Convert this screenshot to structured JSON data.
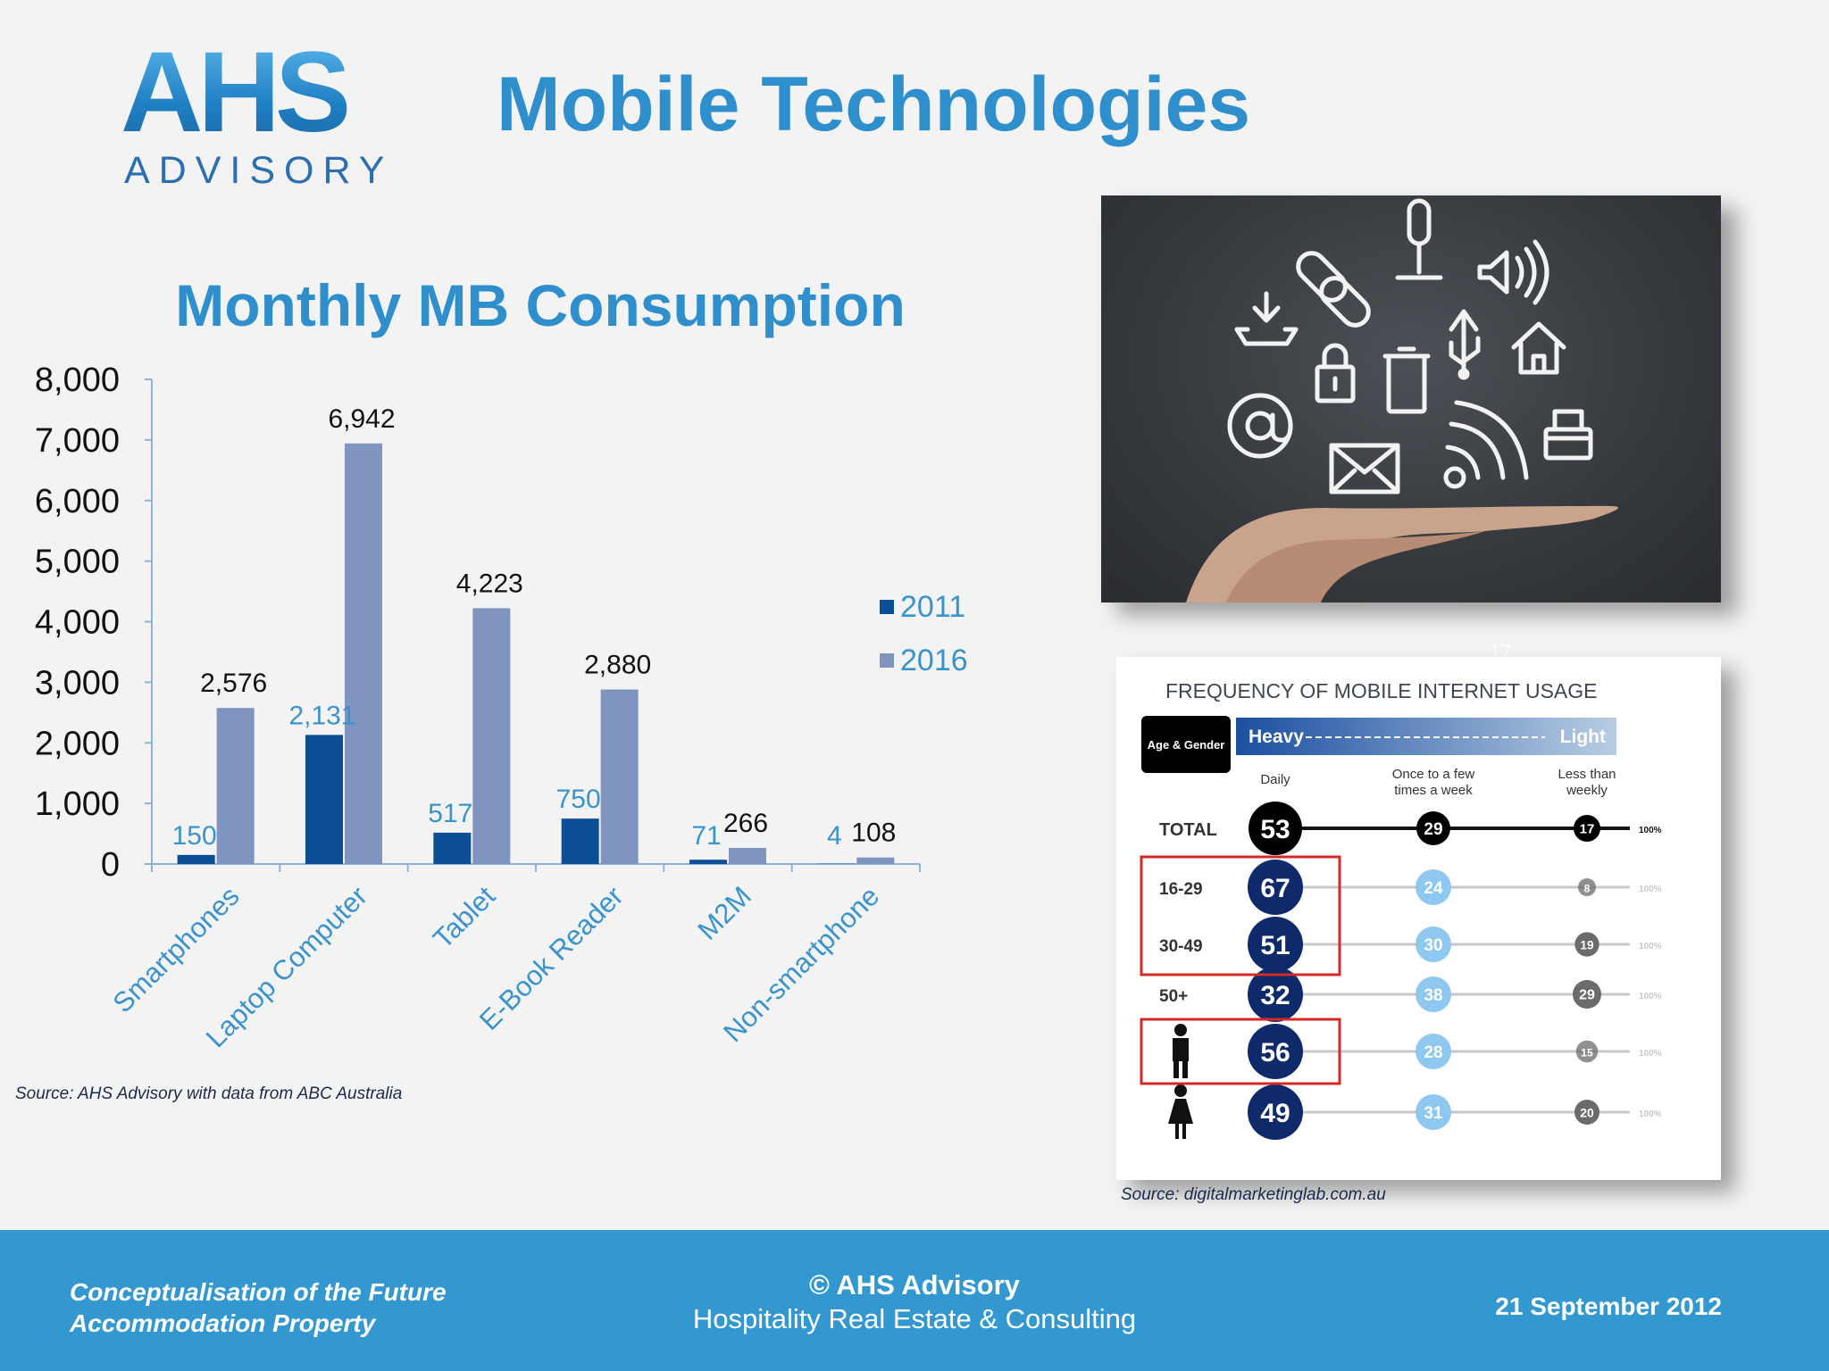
{
  "logo": {
    "main": "AHS",
    "sub": "ADVISORY"
  },
  "title": "Mobile Technologies",
  "chart_data": {
    "type": "bar",
    "title": "Monthly MB Consumption",
    "categories": [
      "Smartphones",
      "Laptop Computer",
      "Tablet",
      "E-Book Reader",
      "M2M",
      "Non-smartphone"
    ],
    "series": [
      {
        "name": "2011",
        "values": [
          150,
          2131,
          517,
          750,
          71,
          4
        ],
        "labels": [
          "150",
          "2,131",
          "517",
          "750",
          "71",
          "4"
        ],
        "color": "#0d4f97",
        "label_color": "#3a93cc"
      },
      {
        "name": "2016",
        "values": [
          2576,
          6942,
          4223,
          2880,
          266,
          108
        ],
        "labels": [
          "2,576",
          "6,942",
          "4,223",
          "2,880",
          "266",
          "108"
        ],
        "color": "#7f95c0",
        "label_color": "#111111"
      }
    ],
    "ylim": [
      0,
      8000
    ],
    "yticks": [
      "0",
      "1,000",
      "2,000",
      "3,000",
      "4,000",
      "5,000",
      "6,000",
      "7,000",
      "8,000"
    ],
    "legend_position": "right",
    "xlabel": "",
    "ylabel": "",
    "grid": false
  },
  "chart_source": "Source: AHS Advisory with data from ABC Australia",
  "photo": {
    "icons": [
      "download-icon",
      "link-icon",
      "microphone-icon",
      "speaker-icon",
      "lock-icon",
      "trash-icon",
      "usb-icon",
      "home-icon",
      "at-sign-icon",
      "envelope-icon",
      "wifi-icon",
      "printer-icon",
      "hand-icon"
    ]
  },
  "frequency": {
    "title": "FREQUENCY OF MOBILE INTERNET USAGE",
    "age_gender_label": "Age & Gender",
    "heavy_label": "Heavy",
    "light_label": "Light",
    "columns": [
      "Daily",
      "Once to a few times a week",
      "Less than weekly"
    ],
    "end_label": "100%",
    "rows": [
      {
        "label": "TOTAL",
        "values": [
          "53",
          "29",
          "17"
        ]
      },
      {
        "label": "16-29",
        "values": [
          "67",
          "24",
          "8"
        ]
      },
      {
        "label": "30-49",
        "values": [
          "51",
          "30",
          "19"
        ]
      },
      {
        "label": "50+",
        "values": [
          "32",
          "38",
          "29"
        ]
      },
      {
        "label": "",
        "icon": "male-icon",
        "values": [
          "56",
          "28",
          "15"
        ]
      },
      {
        "label": "",
        "icon": "female-icon",
        "values": [
          "49",
          "31",
          "20"
        ]
      }
    ]
  },
  "frequency_source": "Source: digitalmarketinglab.com.au",
  "footer": {
    "left_line1": "Conceptualisation of the Future",
    "left_line2": "Accommodation Property",
    "center_line1": "© AHS Advisory",
    "center_line2": "Hospitality Real Estate & Consulting",
    "right": "21 September 2012"
  },
  "page_number": "17"
}
